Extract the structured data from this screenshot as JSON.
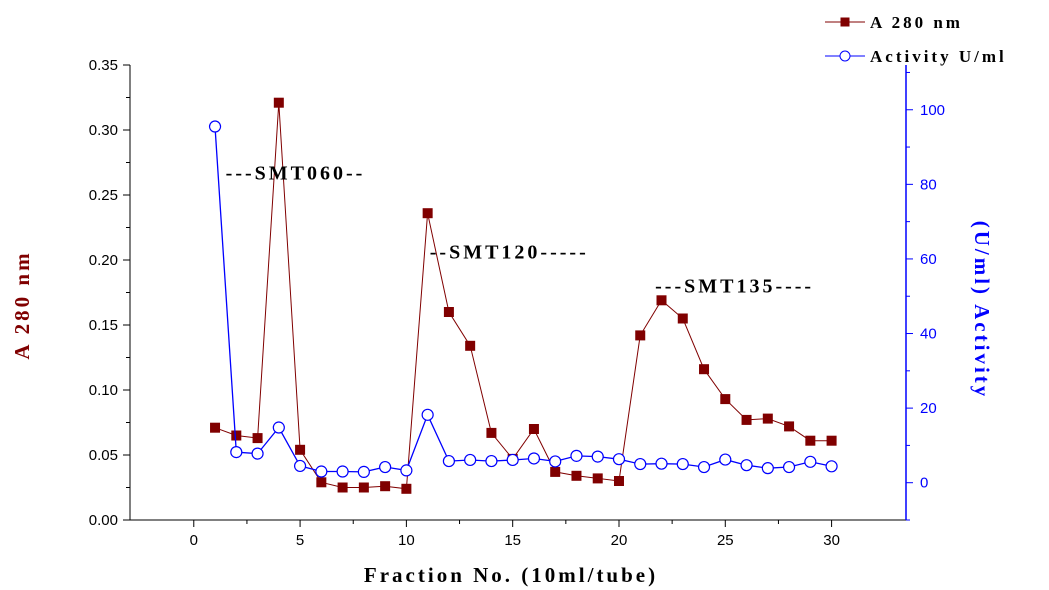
{
  "chart_data": {
    "type": "line",
    "xlabel": "Fraction No. (10ml/tube)",
    "ylabel_left": "A 280 nm",
    "ylabel_right": "(U/ml) Activity",
    "xlim": [
      -3,
      33.5
    ],
    "ylim_left": [
      0.0,
      0.35
    ],
    "ylim_right": [
      -10,
      112
    ],
    "x_ticks": [
      "0",
      "5",
      "10",
      "15",
      "20",
      "25",
      "30"
    ],
    "y_left_ticks": [
      "0.00",
      "0.05",
      "0.10",
      "0.15",
      "0.20",
      "0.25",
      "0.30",
      "0.35"
    ],
    "y_right_ticks": [
      "0",
      "20",
      "40",
      "60",
      "80",
      "100"
    ],
    "x": [
      1,
      2,
      3,
      4,
      5,
      6,
      7,
      8,
      9,
      10,
      11,
      12,
      13,
      14,
      15,
      16,
      17,
      18,
      19,
      20,
      21,
      22,
      23,
      24,
      25,
      26,
      27,
      28,
      29,
      30
    ],
    "series": [
      {
        "name": "A 280 nm",
        "axis": "left",
        "color": "#800000",
        "marker": "square",
        "values": [
          0.071,
          0.065,
          0.063,
          0.321,
          0.054,
          0.029,
          0.025,
          0.025,
          0.026,
          0.024,
          0.236,
          0.16,
          0.134,
          0.067,
          0.047,
          0.07,
          0.037,
          0.034,
          0.032,
          0.03,
          0.142,
          0.169,
          0.155,
          0.116,
          0.093,
          0.077,
          0.078,
          0.072,
          0.061,
          0.061
        ]
      },
      {
        "name": "Activity U/ml",
        "axis": "right",
        "color": "#0000ff",
        "marker": "circle",
        "values": [
          95.5,
          8.2,
          7.8,
          14.8,
          4.5,
          3.0,
          3.0,
          2.9,
          4.2,
          3.3,
          18.2,
          5.8,
          6.1,
          5.8,
          6.1,
          6.5,
          5.7,
          7.2,
          7.0,
          6.3,
          5.0,
          5.1,
          5.0,
          4.2,
          6.2,
          4.7,
          3.9,
          4.2,
          5.6,
          4.4
        ]
      }
    ],
    "annotations": [
      {
        "text": "---SMT060--",
        "x": 1.5,
        "y": 0.262
      },
      {
        "text": "--SMT120-----",
        "x": 11.1,
        "y": 0.201
      },
      {
        "text": "---SMT135----",
        "x": 21.7,
        "y": 0.175
      }
    ],
    "legend_position": "top-right",
    "grid": false
  }
}
